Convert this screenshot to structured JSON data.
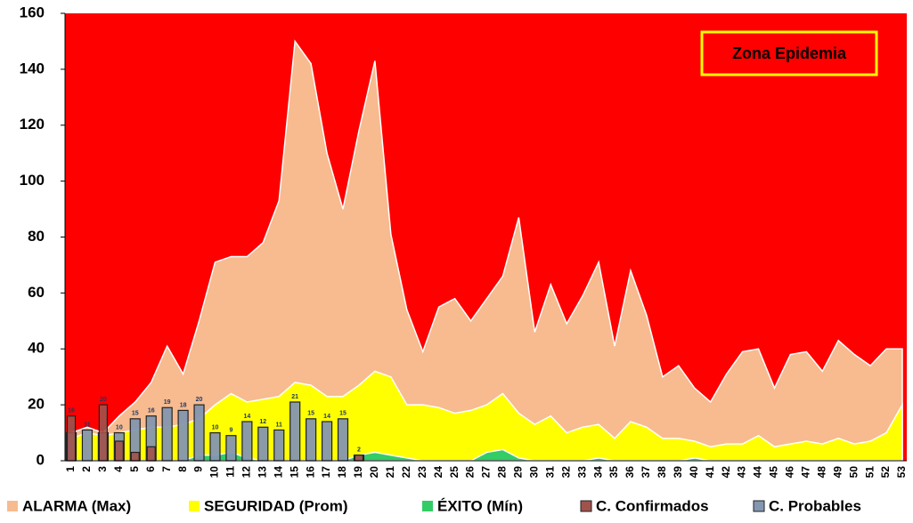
{
  "chart_data": {
    "type": "epidemic_channel",
    "annotation": "Zona Epidemia",
    "background_color": "#ff0000",
    "categories": [
      "1",
      "2",
      "3",
      "4",
      "5",
      "6",
      "7",
      "8",
      "9",
      "10",
      "11",
      "12",
      "13",
      "14",
      "15",
      "16",
      "17",
      "18",
      "19",
      "20",
      "21",
      "22",
      "23",
      "24",
      "25",
      "26",
      "27",
      "28",
      "29",
      "30",
      "31",
      "32",
      "33",
      "34",
      "35",
      "36",
      "37",
      "38",
      "39",
      "40",
      "41",
      "42",
      "43",
      "44",
      "45",
      "46",
      "47",
      "48",
      "49",
      "50",
      "51",
      "52",
      "53"
    ],
    "ylim": [
      0,
      160
    ],
    "yticks": [
      0,
      20,
      40,
      60,
      80,
      100,
      120,
      140,
      160
    ],
    "series": [
      {
        "name": "ALARMA (Max)",
        "color": "#f7bb8f",
        "kind": "area",
        "values": [
          10,
          12,
          10,
          16,
          21,
          28,
          41,
          31,
          50,
          71,
          73,
          73,
          78,
          93,
          150,
          142,
          110,
          90,
          118,
          143,
          81,
          54,
          39,
          55,
          58,
          50,
          58,
          66,
          87,
          46,
          63,
          49,
          59,
          71,
          41,
          68,
          52,
          30,
          34,
          26,
          21,
          31,
          39,
          40,
          26,
          38,
          39,
          32,
          43,
          38,
          34,
          40,
          40
        ]
      },
      {
        "name": "SEGURIDAD (Prom)",
        "color": "#ffff00",
        "kind": "area",
        "values": [
          8,
          10,
          9,
          10,
          11,
          12,
          12,
          13,
          15,
          20,
          24,
          21,
          22,
          23,
          28,
          27,
          23,
          23,
          27,
          32,
          30,
          20,
          20,
          19,
          17,
          18,
          20,
          24,
          17,
          13,
          16,
          10,
          12,
          13,
          8,
          14,
          12,
          8,
          8,
          7,
          5,
          6,
          6,
          9,
          5,
          6,
          7,
          6,
          8,
          6,
          7,
          10,
          20
        ]
      },
      {
        "name": "ÉXITO (Mín)",
        "color": "#33cc66",
        "kind": "area",
        "values": [
          0,
          0,
          0,
          0,
          0,
          0,
          0,
          0,
          2,
          2,
          3,
          1,
          0,
          0,
          0,
          0,
          0,
          0,
          2,
          3,
          2,
          1,
          0,
          0,
          0,
          0,
          3,
          4,
          1,
          0,
          0,
          0,
          0,
          1,
          0,
          0,
          0,
          0,
          0,
          1,
          0,
          0,
          0,
          0,
          0,
          0,
          0,
          0,
          0,
          0,
          0,
          0,
          0
        ]
      },
      {
        "name": "C. Confirmados",
        "color": "#a0524d",
        "kind": "bar",
        "values": [
          16,
          null,
          20,
          7,
          3,
          5,
          null,
          null,
          null,
          null,
          null,
          null,
          null,
          null,
          null,
          null,
          null,
          null,
          2,
          null,
          null,
          null,
          null,
          null,
          null,
          null,
          null,
          null,
          null,
          null,
          null,
          null,
          null,
          null,
          null,
          null,
          null,
          null,
          null,
          null,
          null,
          null,
          null,
          null,
          null,
          null,
          null,
          null,
          null,
          null,
          null,
          null,
          null
        ]
      },
      {
        "name": "C. Probables",
        "color": "#8496b0",
        "kind": "bar",
        "values": [
          10,
          11,
          10,
          10,
          15,
          16,
          19,
          18,
          20,
          10,
          9,
          14,
          12,
          11,
          21,
          15,
          14,
          15,
          2,
          null,
          null,
          null,
          null,
          null,
          null,
          null,
          null,
          null,
          null,
          null,
          null,
          null,
          null,
          null,
          null,
          null,
          null,
          null,
          null,
          null,
          null,
          null,
          null,
          null,
          null,
          null,
          null,
          null,
          null,
          null,
          null,
          null,
          null
        ]
      }
    ]
  }
}
